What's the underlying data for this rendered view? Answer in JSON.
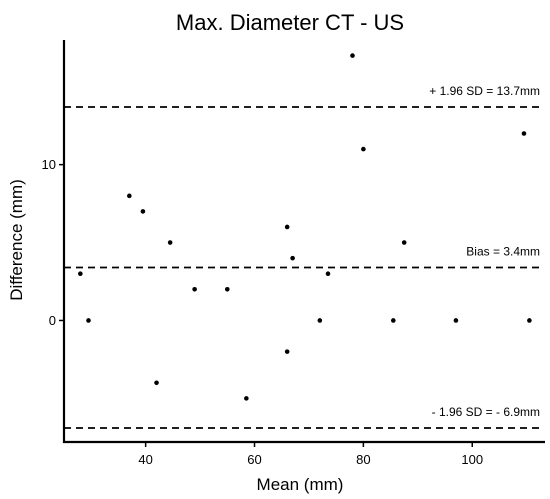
{
  "chart_data": {
    "type": "scatter",
    "title": "Max. Diameter CT - US",
    "xlabel": "Mean (mm)",
    "ylabel": "Difference (mm)",
    "xlim": [
      25,
      113
    ],
    "ylim": [
      -7.8,
      18
    ],
    "x_ticks": [
      40,
      60,
      80,
      100
    ],
    "y_ticks": [
      0,
      10
    ],
    "grid": false,
    "legend": "none",
    "points": [
      {
        "x": 28,
        "y": 3
      },
      {
        "x": 29.5,
        "y": 0
      },
      {
        "x": 37,
        "y": 8
      },
      {
        "x": 39.5,
        "y": 7
      },
      {
        "x": 42,
        "y": -4
      },
      {
        "x": 44.5,
        "y": 5
      },
      {
        "x": 49,
        "y": 2
      },
      {
        "x": 55,
        "y": 2
      },
      {
        "x": 58.5,
        "y": -5
      },
      {
        "x": 66,
        "y": 6
      },
      {
        "x": 66,
        "y": -2
      },
      {
        "x": 67,
        "y": 4
      },
      {
        "x": 72,
        "y": 0
      },
      {
        "x": 73.5,
        "y": 3
      },
      {
        "x": 78,
        "y": 17
      },
      {
        "x": 80,
        "y": 11
      },
      {
        "x": 85.5,
        "y": 0
      },
      {
        "x": 87.5,
        "y": 5
      },
      {
        "x": 97,
        "y": 0
      },
      {
        "x": 109.5,
        "y": 12
      },
      {
        "x": 110.5,
        "y": 0
      }
    ],
    "reference_lines": [
      {
        "y": 13.7,
        "label": "+ 1.96 SD = 13.7mm"
      },
      {
        "y": 3.4,
        "label": "Bias = 3.4mm"
      },
      {
        "y": -6.9,
        "label": "- 1.96 SD = - 6.9mm"
      }
    ]
  }
}
